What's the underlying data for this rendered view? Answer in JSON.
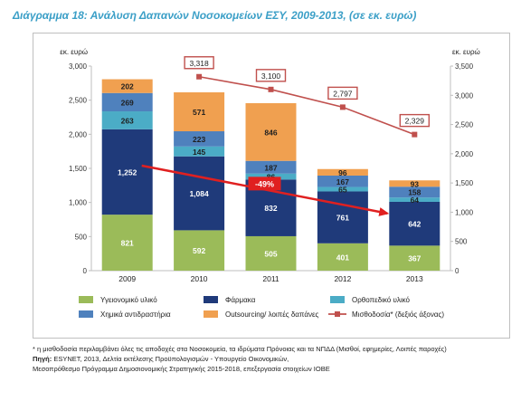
{
  "title": "Διάγραμμα 18: Ανάλυση Δαπανών Νοσοκομείων ΕΣΥ, 2009-2013, (σε εκ. ευρώ)",
  "chart_data": {
    "type": "bar",
    "stacked": true,
    "categories": [
      "2009",
      "2010",
      "2011",
      "2012",
      "2013"
    ],
    "ylabel_left": "εκ. ευρώ",
    "ylabel_right": "εκ. ευρώ",
    "ylim_left": [
      0,
      3000
    ],
    "ylim_right": [
      0,
      3500
    ],
    "yticks_left": [
      "0",
      "500",
      "1,000",
      "1,500",
      "2,000",
      "2,500",
      "3,000"
    ],
    "yticks_right": [
      "0",
      "500",
      "1,000",
      "1,500",
      "2,000",
      "2,500",
      "3,000",
      "3,500"
    ],
    "grid": false,
    "legend_placement": "bottom",
    "series": [
      {
        "name": "Υγειονομικό υλικό",
        "values": [
          821,
          592,
          505,
          401,
          367
        ],
        "color": "#9bbb59",
        "labels": [
          "821",
          "592",
          "505",
          "401",
          "367"
        ]
      },
      {
        "name": "Φάρμακα",
        "values": [
          1252,
          1084,
          832,
          761,
          642
        ],
        "color": "#1f3a7a",
        "labels": [
          "1,252",
          "1,084",
          "832",
          "761",
          "642"
        ]
      },
      {
        "name": "Ορθοπεδικό υλικό",
        "values": [
          263,
          145,
          86,
          65,
          64
        ],
        "color": "#4bacc6",
        "labels": [
          "263",
          "145",
          "86",
          "65",
          "64"
        ]
      },
      {
        "name": "Χημικά αντιδραστήρια",
        "values": [
          269,
          223,
          187,
          167,
          158
        ],
        "color": "#4f81bd",
        "labels": [
          "269",
          "223",
          "187",
          "167",
          "158"
        ]
      },
      {
        "name": "Outsourcing/ λοιπές δαπάνες",
        "values": [
          202,
          571,
          846,
          96,
          93
        ],
        "color": "#f0a050",
        "labels": [
          "202",
          "571",
          "846",
          "96",
          "93"
        ]
      }
    ],
    "line_series": {
      "name": "Μισθοδοσία* (δεξιός άξονας)",
      "categories": [
        "2010",
        "2011",
        "2012",
        "2013"
      ],
      "values": [
        3318,
        3100,
        2797,
        2329
      ],
      "labels": [
        "3,318",
        "3,100",
        "2,797",
        "2,329"
      ],
      "axis": "right",
      "color": "#c0504d"
    },
    "annotation": {
      "text": "-49%",
      "from": "2009",
      "to": "2013",
      "color": "#e02020"
    }
  },
  "footnotes": {
    "note": "* η μισθοδοσία περιλαμβάνει όλες τις αποδοχές στα Νοσοκομεία, τα ιδρύματα Πρόνοιας και τα ΝΠΔΔ (Μισθοί, εφημερίες, Λοιπές παροχές)",
    "source_label": "Πηγή:",
    "source": "ESYNET, 2013, Δελτία εκτέλεσης Προϋπολογισμών - Υπουργείο Οικονομικών,",
    "source2": "Μεσοπρόθεσμο Πρόγραμμα Δημοσιονομικής Στρατηγικής 2015-2018, επεξεργασία στοιχείων ΙΟΒΕ"
  }
}
